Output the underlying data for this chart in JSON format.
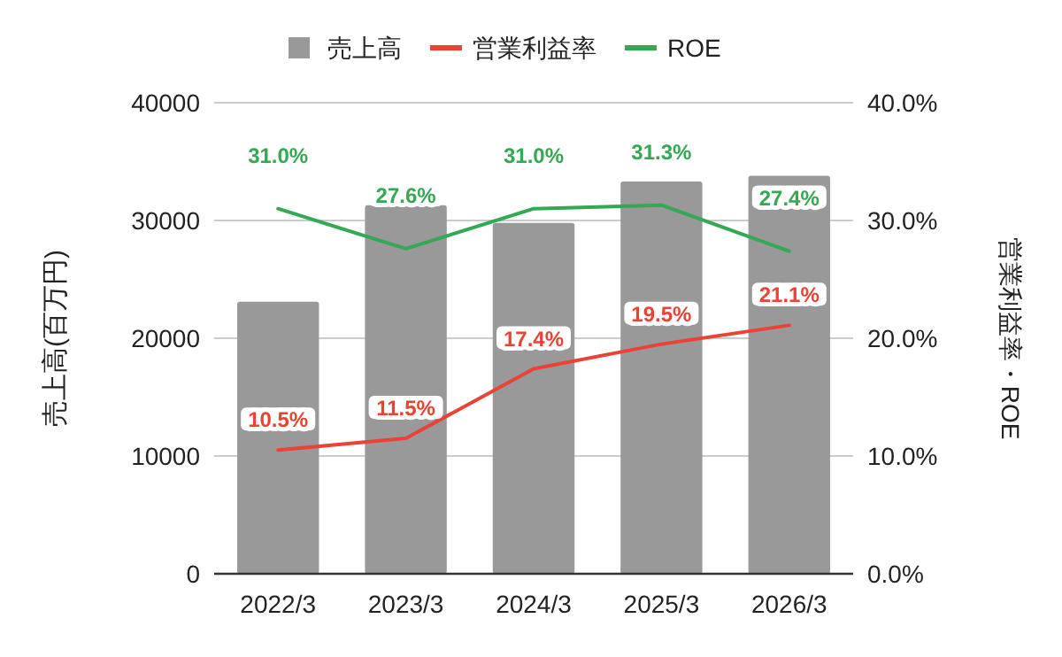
{
  "chart_data": {
    "type": "bar",
    "categories": [
      "2022/3",
      "2023/3",
      "2024/3",
      "2025/3",
      "2026/3"
    ],
    "series": [
      {
        "name": "売上高",
        "type": "bar",
        "color": "#999999",
        "values": [
          23100,
          31300,
          29800,
          33300,
          33800
        ]
      },
      {
        "name": "営業利益率",
        "type": "line",
        "axis": "y2",
        "color": "#ea4335",
        "values": [
          10.5,
          11.5,
          17.4,
          19.5,
          21.1
        ],
        "value_labels": [
          "10.5%",
          "11.5%",
          "17.4%",
          "19.5%",
          "21.1%"
        ]
      },
      {
        "name": "ROE",
        "type": "line",
        "axis": "y2",
        "color": "#34a853",
        "values": [
          31.0,
          27.6,
          31.0,
          31.3,
          27.4
        ],
        "value_labels": [
          "31.0%",
          "27.6%",
          "31.0%",
          "31.3%",
          "27.4%"
        ]
      }
    ],
    "ylabel": "売上高(百万円)",
    "y2label": "営業利益率・ROE",
    "ylim": [
      0,
      40000
    ],
    "yticks": [
      0,
      10000,
      20000,
      30000,
      40000
    ],
    "y2lim": [
      0,
      40
    ],
    "y2ticks": [
      {
        "value": 0,
        "label": "0.0%"
      },
      {
        "value": 10,
        "label": "10.0%"
      },
      {
        "value": 20,
        "label": "20.0%"
      },
      {
        "value": 30,
        "label": "30.0%"
      },
      {
        "value": 40,
        "label": "40.0%"
      }
    ],
    "grid": "y",
    "legend": "top"
  }
}
